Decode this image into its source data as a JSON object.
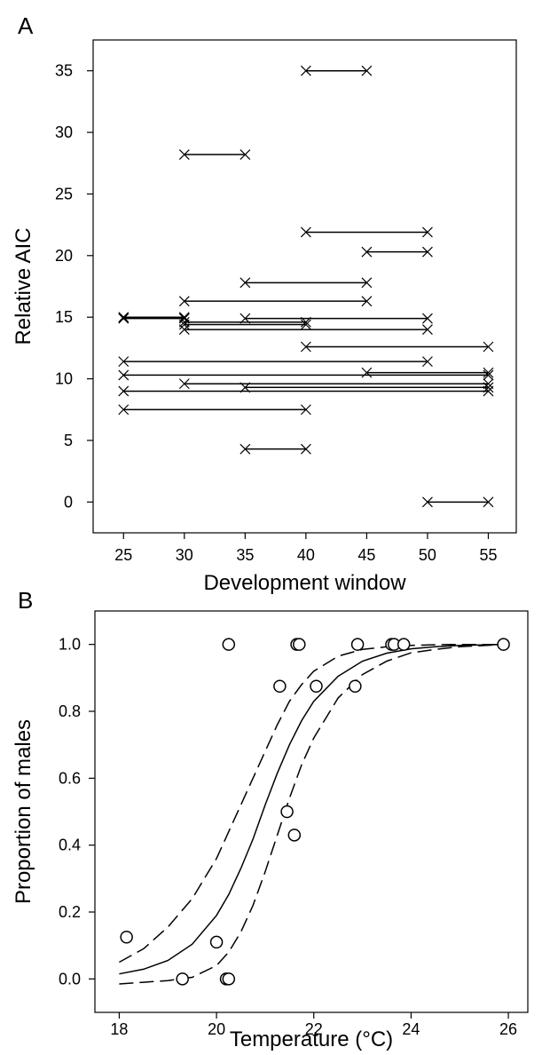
{
  "panels": {
    "a": {
      "label": "A"
    },
    "b": {
      "label": "B"
    }
  },
  "chart_data": [
    {
      "type": "interval",
      "panel": "A",
      "xlabel": "Development window",
      "ylabel": "Relative AIC",
      "xlim": [
        22.5,
        57.3
      ],
      "ylim": [
        -2.5,
        37.5
      ],
      "xticks": [
        25,
        30,
        35,
        40,
        45,
        50,
        55
      ],
      "yticks": [
        0,
        5,
        10,
        15,
        20,
        25,
        30,
        35
      ],
      "grid": false,
      "segments": [
        {
          "start": 40,
          "end": 45,
          "aic": 35.0
        },
        {
          "start": 30,
          "end": 35,
          "aic": 28.2
        },
        {
          "start": 40,
          "end": 50,
          "aic": 21.9
        },
        {
          "start": 45,
          "end": 50,
          "aic": 20.3
        },
        {
          "start": 35,
          "end": 45,
          "aic": 17.8
        },
        {
          "start": 30,
          "end": 45,
          "aic": 16.3
        },
        {
          "start": 25,
          "end": 30,
          "aic": 15.0
        },
        {
          "start": 25,
          "end": 30,
          "aic": 14.9
        },
        {
          "start": 35,
          "end": 50,
          "aic": 14.9
        },
        {
          "start": 30,
          "end": 40,
          "aic": 14.6
        },
        {
          "start": 30,
          "end": 40,
          "aic": 14.4
        },
        {
          "start": 30,
          "end": 50,
          "aic": 14.0
        },
        {
          "start": 40,
          "end": 55,
          "aic": 12.6
        },
        {
          "start": 25,
          "end": 50,
          "aic": 11.4
        },
        {
          "start": 45,
          "end": 55,
          "aic": 10.5
        },
        {
          "start": 25,
          "end": 55,
          "aic": 10.3
        },
        {
          "start": 30,
          "end": 55,
          "aic": 9.6
        },
        {
          "start": 35,
          "end": 55,
          "aic": 9.3
        },
        {
          "start": 25,
          "end": 55,
          "aic": 9.0
        },
        {
          "start": 25,
          "end": 40,
          "aic": 7.5
        },
        {
          "start": 35,
          "end": 40,
          "aic": 4.3
        },
        {
          "start": 50,
          "end": 55,
          "aic": 0.0
        }
      ]
    },
    {
      "type": "scatter",
      "panel": "B",
      "xlabel": "Temperature (°C)",
      "ylabel": "Proportion of males",
      "xlim": [
        17.5,
        26.4
      ],
      "ylim": [
        -0.1,
        1.1
      ],
      "xticks": [
        18,
        20,
        22,
        24,
        26
      ],
      "yticks": [
        0.0,
        0.2,
        0.4,
        0.6,
        0.8,
        1.0
      ],
      "ytick_labels": [
        "0.0",
        "0.2",
        "0.4",
        "0.6",
        "0.8",
        "1.0"
      ],
      "grid": false,
      "points": [
        {
          "x": 18.15,
          "y": 0.125
        },
        {
          "x": 19.3,
          "y": 0.0
        },
        {
          "x": 20.0,
          "y": 0.11
        },
        {
          "x": 20.2,
          "y": 0.0
        },
        {
          "x": 20.25,
          "y": 0.0
        },
        {
          "x": 20.25,
          "y": 1.0
        },
        {
          "x": 21.3,
          "y": 0.875
        },
        {
          "x": 21.45,
          "y": 0.5
        },
        {
          "x": 21.6,
          "y": 0.43
        },
        {
          "x": 21.65,
          "y": 1.0
        },
        {
          "x": 21.7,
          "y": 1.0
        },
        {
          "x": 22.05,
          "y": 0.875
        },
        {
          "x": 22.85,
          "y": 0.875
        },
        {
          "x": 22.9,
          "y": 1.0
        },
        {
          "x": 23.6,
          "y": 1.0
        },
        {
          "x": 23.65,
          "y": 1.0
        },
        {
          "x": 23.85,
          "y": 1.0
        },
        {
          "x": 25.9,
          "y": 1.0
        }
      ],
      "fit": {
        "style": "solid",
        "x": [
          18.0,
          18.5,
          19.0,
          19.5,
          20.0,
          20.25,
          20.5,
          20.75,
          21.0,
          21.25,
          21.5,
          21.75,
          22.0,
          22.5,
          23.0,
          23.5,
          24.0,
          24.5,
          25.0,
          25.9
        ],
        "y": [
          0.015,
          0.029,
          0.055,
          0.104,
          0.19,
          0.252,
          0.33,
          0.418,
          0.52,
          0.615,
          0.7,
          0.772,
          0.83,
          0.905,
          0.95,
          0.974,
          0.987,
          0.993,
          0.997,
          1.0
        ]
      },
      "ci_upper": {
        "style": "dashed",
        "x": [
          18.0,
          18.5,
          19.0,
          19.5,
          20.0,
          20.25,
          20.5,
          20.75,
          21.0,
          21.25,
          21.5,
          21.75,
          22.0,
          22.5,
          23.0,
          23.5,
          24.0,
          24.5,
          25.0,
          25.9
        ],
        "y": [
          0.05,
          0.09,
          0.155,
          0.24,
          0.36,
          0.44,
          0.52,
          0.6,
          0.68,
          0.76,
          0.83,
          0.88,
          0.92,
          0.965,
          0.985,
          0.993,
          0.997,
          0.999,
          1.0,
          1.0
        ]
      },
      "ci_lower": {
        "style": "dashed",
        "x": [
          18.0,
          18.5,
          19.0,
          19.5,
          20.0,
          20.25,
          20.5,
          20.75,
          21.0,
          21.25,
          21.5,
          21.75,
          22.0,
          22.5,
          23.0,
          23.5,
          24.0,
          24.5,
          25.0,
          25.9
        ],
        "y": [
          -0.015,
          -0.01,
          -0.005,
          0.005,
          0.04,
          0.08,
          0.14,
          0.22,
          0.32,
          0.43,
          0.54,
          0.64,
          0.72,
          0.84,
          0.91,
          0.95,
          0.975,
          0.985,
          0.993,
          1.0
        ]
      }
    }
  ]
}
